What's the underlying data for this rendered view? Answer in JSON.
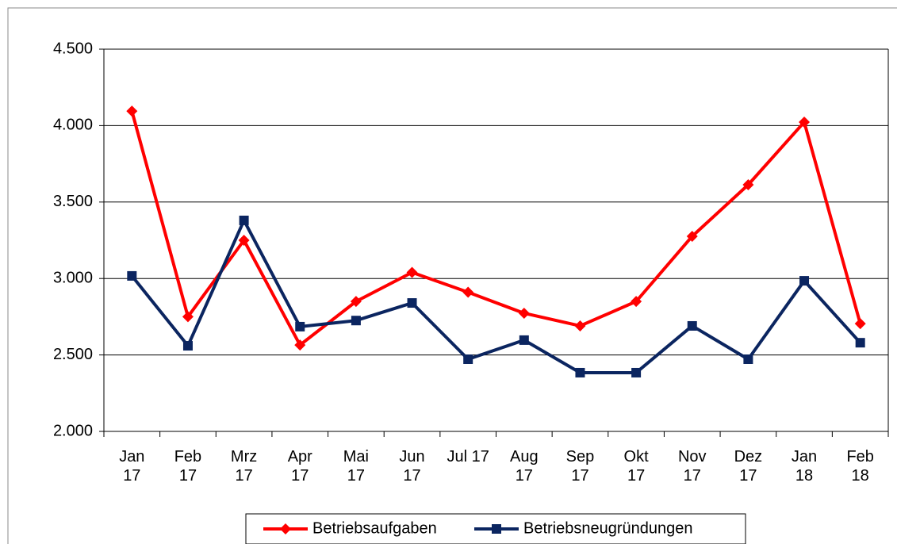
{
  "chart_data": {
    "type": "line",
    "categories": [
      "Jan 17",
      "Feb 17",
      "Mrz 17",
      "Apr 17",
      "Mai 17",
      "Jun 17",
      "Jul 17",
      "Aug 17",
      "Sep 17",
      "Okt 17",
      "Nov 17",
      "Dez 17",
      "Jan 18",
      "Feb 18"
    ],
    "series": [
      {
        "name": "Betriebsaufgaben",
        "color": "#ff0000",
        "marker": "diamond",
        "values": [
          4095,
          2750,
          3250,
          2565,
          2850,
          3040,
          2910,
          2773,
          2690,
          2850,
          3276,
          3613,
          4023,
          2705
        ]
      },
      {
        "name": "Betriebsneugründungen",
        "color": "#0b2560",
        "marker": "square",
        "values": [
          3017,
          2560,
          3380,
          2685,
          2725,
          2840,
          2472,
          2597,
          2384,
          2384,
          2690,
          2472,
          2985,
          2580
        ]
      }
    ],
    "ylim": [
      2000,
      4500
    ],
    "yticks": [
      {
        "value": 2000,
        "label": "2.000"
      },
      {
        "value": 2500,
        "label": "2.500"
      },
      {
        "value": 3000,
        "label": "3.000"
      },
      {
        "value": 3500,
        "label": "3.500"
      },
      {
        "value": 4000,
        "label": "4.000"
      },
      {
        "value": 4500,
        "label": "4.500"
      }
    ],
    "grid": true,
    "legend": "bottom"
  }
}
